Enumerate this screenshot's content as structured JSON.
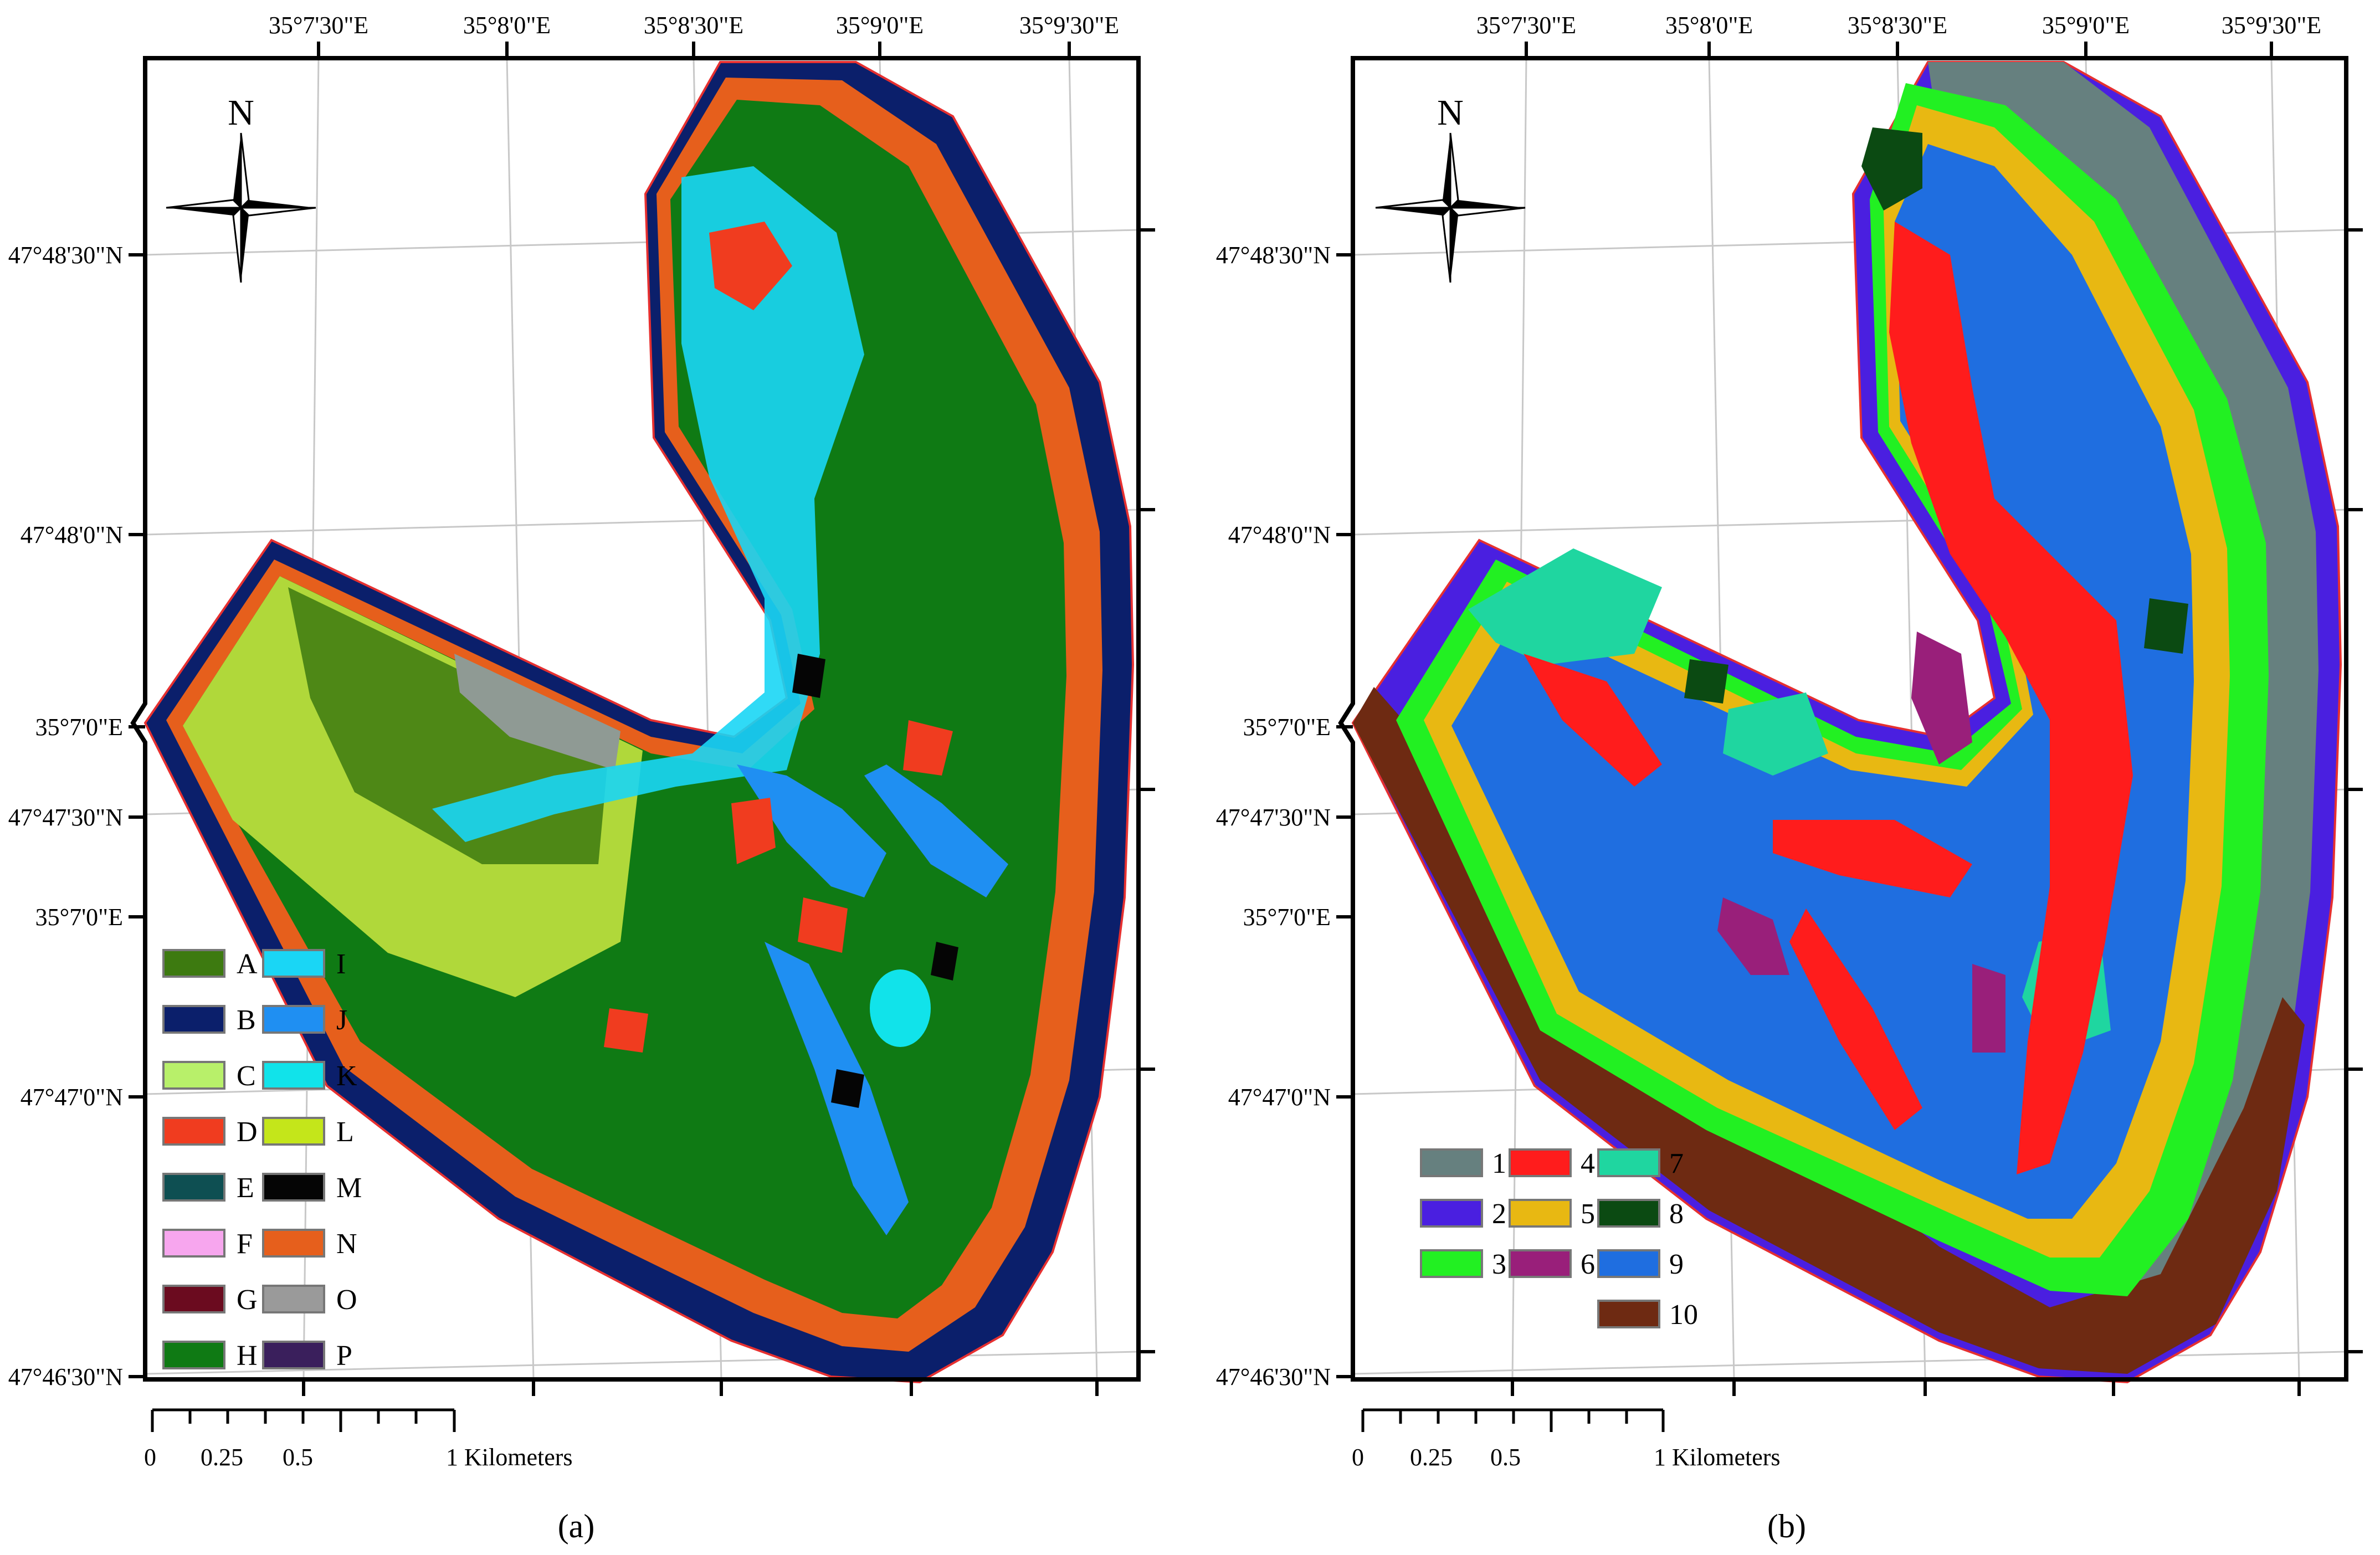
{
  "panels": [
    {
      "id": "a",
      "caption": "(a)",
      "top_coords": [
        "35°7'30\"E",
        "35°8'0\"E",
        "35°8'30\"E",
        "35°9'0\"E",
        "35°9'30\"E"
      ],
      "left_coords": [
        "47°48'30\"N",
        "47°48'0\"N",
        "35°7'0\"E",
        "47°47'30\"N",
        "35°7'0\"E",
        "47°47'0\"N",
        "47°46'30\"N"
      ],
      "north_label": "N",
      "scale_labels": [
        "0",
        "0.25",
        "0.5",
        "1 Kilometers"
      ],
      "legend": [
        {
          "label": "A",
          "color": "#3d7a10"
        },
        {
          "label": "I",
          "color": "#1ad6f5"
        },
        {
          "label": "B",
          "color": "#0b1f6b"
        },
        {
          "label": "J",
          "color": "#1f8ff2"
        },
        {
          "label": "C",
          "color": "#b8f06a"
        },
        {
          "label": "K",
          "color": "#11e3ea"
        },
        {
          "label": "D",
          "color": "#f03c1f"
        },
        {
          "label": "L",
          "color": "#c4e61a"
        },
        {
          "label": "E",
          "color": "#0e4f52"
        },
        {
          "label": "M",
          "color": "#050505"
        },
        {
          "label": "F",
          "color": "#f7a6ee"
        },
        {
          "label": "N",
          "color": "#e65f1c"
        },
        {
          "label": "G",
          "color": "#6b0b1f"
        },
        {
          "label": "O",
          "color": "#9a9a9a"
        },
        {
          "label": "H",
          "color": "#0f7a14"
        },
        {
          "label": "P",
          "color": "#3a1f5c"
        }
      ]
    },
    {
      "id": "b",
      "caption": "(b)",
      "top_coords": [
        "35°7'30\"E",
        "35°8'0\"E",
        "35°8'30\"E",
        "35°9'0\"E",
        "35°9'30\"E"
      ],
      "left_coords": [
        "47°48'30\"N",
        "47°48'0\"N",
        "35°7'0\"E",
        "47°47'30\"N",
        "35°7'0\"E",
        "47°47'0\"N",
        "47°46'30\"N"
      ],
      "north_label": "N",
      "scale_labels": [
        "0",
        "0.25",
        "0.5",
        "1 Kilometers"
      ],
      "legend": [
        {
          "label": "1",
          "color": "#66807f"
        },
        {
          "label": "4",
          "color": "#ff1c1c"
        },
        {
          "label": "7",
          "color": "#1fd6a0"
        },
        {
          "label": "2",
          "color": "#4a1fe0"
        },
        {
          "label": "5",
          "color": "#e8b812"
        },
        {
          "label": "8",
          "color": "#0b4a12"
        },
        {
          "label": "3",
          "color": "#22f022"
        },
        {
          "label": "6",
          "color": "#991f7a"
        },
        {
          "label": "9",
          "color": "#1f6ee0"
        },
        {
          "label": "10",
          "color": "#6e2a12"
        }
      ]
    }
  ]
}
